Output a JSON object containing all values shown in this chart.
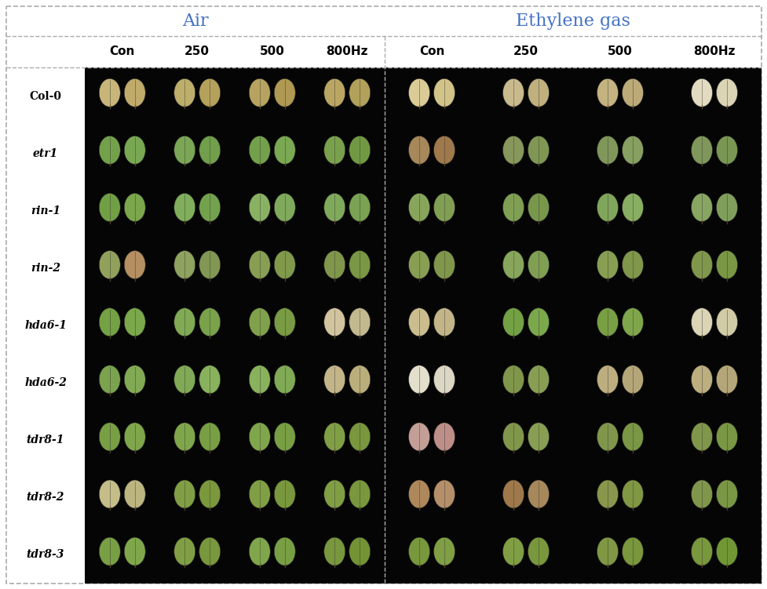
{
  "title_air": "Air",
  "title_ethylene": "Ethylene gas",
  "title_color": "#4472C4",
  "col_labels": [
    "Con",
    "250",
    "500",
    "800Hz"
  ],
  "row_labels": [
    "Col-0",
    "etr1",
    "rin-1",
    "rin-2",
    "hda6-1",
    "hda6-2",
    "tdr8-1",
    "tdr8-2",
    "tdr8-3"
  ],
  "background_color": "#ffffff",
  "panel_bg": "#050505",
  "fig_width": 9.77,
  "fig_height": 7.51,
  "air_leaf_colors": [
    [
      [
        "#d4c080",
        "#cbb570"
      ],
      [
        "#c8b870",
        "#bfab60"
      ],
      [
        "#c2ad65",
        "#b9a258"
      ],
      [
        "#c5b068",
        "#bcaa5f"
      ]
    ],
    [
      [
        "#7aaa50",
        "#80b258"
      ],
      [
        "#82b05a",
        "#78a850"
      ],
      [
        "#7aaa50",
        "#82b258"
      ],
      [
        "#80aa52",
        "#78a248"
      ]
    ],
    [
      [
        "#78a848",
        "#82b050"
      ],
      [
        "#88b860",
        "#7aac52"
      ],
      [
        "#90bc68",
        "#88b460"
      ],
      [
        "#88b460",
        "#80ac58"
      ]
    ],
    [
      [
        "#9aaa60",
        "#c09868"
      ],
      [
        "#98ac65",
        "#8aa058"
      ],
      [
        "#90a858",
        "#88a250"
      ],
      [
        "#88a050",
        "#80a048"
      ]
    ],
    [
      [
        "#7aaa48",
        "#82b250"
      ],
      [
        "#88b458",
        "#80ac50"
      ],
      [
        "#88aa50",
        "#80a448"
      ],
      [
        "#ddd0a8",
        "#cfc498"
      ]
    ],
    [
      [
        "#82ac52",
        "#8ab45a"
      ],
      [
        "#88b45a",
        "#90bc62"
      ],
      [
        "#90bc62",
        "#88b45a"
      ],
      [
        "#cfc090",
        "#c5b882"
      ]
    ],
    [
      [
        "#80a848",
        "#88b050"
      ],
      [
        "#88b050",
        "#80a848"
      ],
      [
        "#88b050",
        "#80a848"
      ],
      [
        "#88a848",
        "#80a040"
      ]
    ],
    [
      [
        "#d0c890",
        "#c8c088"
      ],
      [
        "#88a848",
        "#82a240"
      ],
      [
        "#88a848",
        "#80a040"
      ],
      [
        "#88a848",
        "#80a040"
      ]
    ],
    [
      [
        "#80a848",
        "#88b050"
      ],
      [
        "#88a848",
        "#80a040"
      ],
      [
        "#88b050",
        "#80a848"
      ],
      [
        "#80a040",
        "#7a9c38"
      ]
    ]
  ],
  "eth_leaf_colors": [
    [
      [
        "#e8d8a0",
        "#dece90"
      ],
      [
        "#d5c595",
        "#caba85"
      ],
      [
        "#d0bc88",
        "#c8b480"
      ],
      [
        "#f0e8cc",
        "#e8e0c0"
      ]
    ],
    [
      [
        "#b09060",
        "#a88050"
      ],
      [
        "#90a060",
        "#88a058"
      ],
      [
        "#88a060",
        "#90a868"
      ],
      [
        "#88a060",
        "#80a058"
      ]
    ],
    [
      [
        "#90b060",
        "#88a858"
      ],
      [
        "#88a858",
        "#80a050"
      ],
      [
        "#88b060",
        "#90b868"
      ],
      [
        "#90b068",
        "#88a860"
      ]
    ],
    [
      [
        "#90a858",
        "#88a050"
      ],
      [
        "#90b060",
        "#88a858"
      ],
      [
        "#90a858",
        "#88a050"
      ],
      [
        "#88a050",
        "#80a048"
      ]
    ],
    [
      [
        "#d8c898",
        "#cec090"
      ],
      [
        "#7aaa48",
        "#82b250"
      ],
      [
        "#80a848",
        "#88b050"
      ],
      [
        "#e8e0c0",
        "#ddd8b0"
      ]
    ],
    [
      [
        "#f0ecd8",
        "#e8e4d0"
      ],
      [
        "#88a050",
        "#90a858"
      ],
      [
        "#c8b888",
        "#c0b080"
      ],
      [
        "#c8b888",
        "#c0b080"
      ]
    ],
    [
      [
        "#d0a8a0",
        "#c89890"
      ],
      [
        "#88a050",
        "#90a858"
      ],
      [
        "#88a050",
        "#80a048"
      ],
      [
        "#88a050",
        "#80a048"
      ]
    ],
    [
      [
        "#b89060",
        "#c09870"
      ],
      [
        "#a88050",
        "#b09060"
      ],
      [
        "#90a050",
        "#88a048"
      ],
      [
        "#88a050",
        "#80a048"
      ]
    ],
    [
      [
        "#80a040",
        "#88a848"
      ],
      [
        "#88a848",
        "#80a040"
      ],
      [
        "#88a048",
        "#80a040"
      ],
      [
        "#80a040",
        "#78a038"
      ]
    ]
  ]
}
